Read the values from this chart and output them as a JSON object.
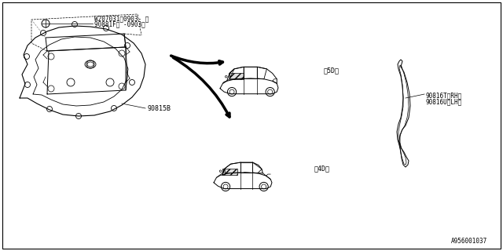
{
  "bg_color": "#ffffff",
  "line_color": "#000000",
  "label_90815B": "90815B",
  "label_90881F": "90881F（ -0903）",
  "label_W207031": "W207031（0903- ）",
  "label_5D": "＜5D＞",
  "label_4D": "＜4D＞",
  "label_90816T": "90816T＜RH＞",
  "label_90816U": "90816U＜LH＞",
  "label_diagram_id": "A956001037",
  "font_size": 6.0,
  "small_font_size": 5.5,
  "border_lw": 1.0
}
